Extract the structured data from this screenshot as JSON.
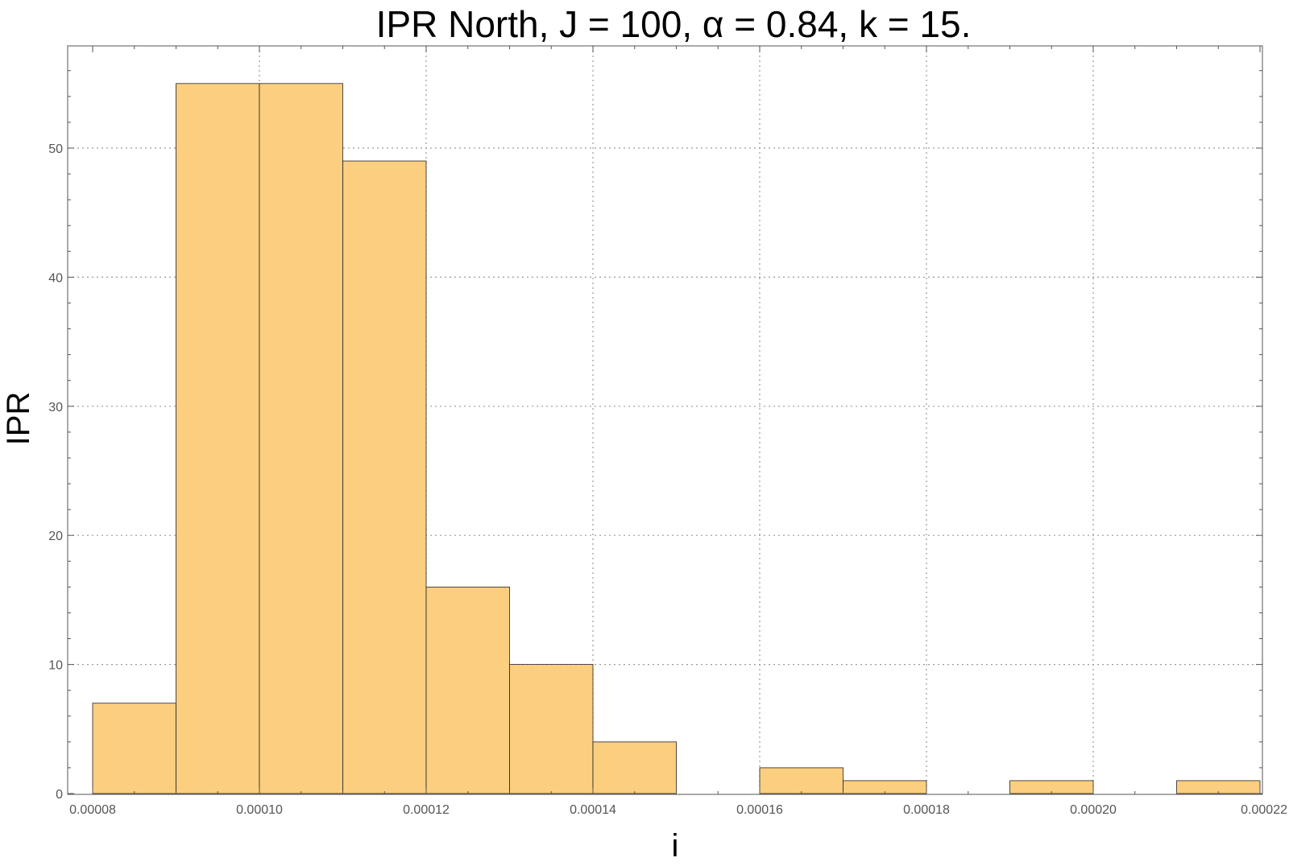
{
  "chart_data": {
    "type": "bar",
    "title": "IPR North, J = 100, α = 0.84, k = 15.",
    "xlabel": "i",
    "ylabel": "IPR",
    "xlim": [
      8e-05,
      0.00022
    ],
    "ylim": [
      0,
      58
    ],
    "grid": true,
    "bar_color": "#fcce80",
    "bar_edge_color": "#222222",
    "grid_color": "#9a9a9a",
    "bins": [
      {
        "x0": 8e-05,
        "x1": 9e-05,
        "value": 7
      },
      {
        "x0": 9e-05,
        "x1": 0.0001,
        "value": 55
      },
      {
        "x0": 0.0001,
        "x1": 0.00011,
        "value": 55
      },
      {
        "x0": 0.00011,
        "x1": 0.00012,
        "value": 49
      },
      {
        "x0": 0.00012,
        "x1": 0.00013,
        "value": 16
      },
      {
        "x0": 0.00013,
        "x1": 0.00014,
        "value": 10
      },
      {
        "x0": 0.00014,
        "x1": 0.00015,
        "value": 4
      },
      {
        "x0": 0.00016,
        "x1": 0.00017,
        "value": 2
      },
      {
        "x0": 0.00017,
        "x1": 0.00018,
        "value": 1
      },
      {
        "x0": 0.00019,
        "x1": 0.0002,
        "value": 1
      },
      {
        "x0": 0.00021,
        "x1": 0.00022,
        "value": 1
      }
    ],
    "x_ticks": [
      {
        "value": 8e-05,
        "label": "0.00008"
      },
      {
        "value": 0.0001,
        "label": "0.00010"
      },
      {
        "value": 0.00012,
        "label": "0.00012"
      },
      {
        "value": 0.00014,
        "label": "0.00014"
      },
      {
        "value": 0.00016,
        "label": "0.00016"
      },
      {
        "value": 0.00018,
        "label": "0.00018"
      },
      {
        "value": 0.0002,
        "label": "0.00020"
      },
      {
        "value": 0.00022,
        "label": "0.00022"
      }
    ],
    "y_ticks": [
      {
        "value": 0,
        "label": "0"
      },
      {
        "value": 10,
        "label": "10"
      },
      {
        "value": 20,
        "label": "20"
      },
      {
        "value": 30,
        "label": "30"
      },
      {
        "value": 40,
        "label": "40"
      },
      {
        "value": 50,
        "label": "50"
      }
    ]
  }
}
